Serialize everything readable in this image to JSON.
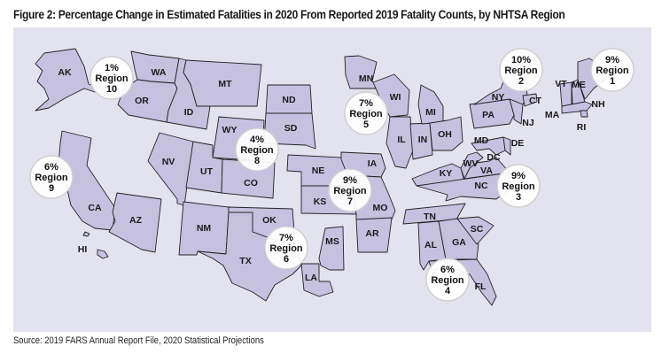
{
  "title": "Figure 2: Percentage Change in Estimated Fatalities in 2020 From Reported 2019 Fatality Counts, by NHTSA Region",
  "source": "Source: 2019 FARS Annual Report File, 2020 Statistical Projections",
  "colors": {
    "state_fill": "#c5c1df",
    "panel_bg": "#e3e2ef",
    "bubble_fill": "#ffffff"
  },
  "states": [
    "AK",
    "WA",
    "OR",
    "ID",
    "MT",
    "ND",
    "SD",
    "WY",
    "NV",
    "UT",
    "CO",
    "CA",
    "AZ",
    "HI",
    "NM",
    "NE",
    "KS",
    "OK",
    "TX",
    "IA",
    "MO",
    "AR",
    "LA",
    "MS",
    "MN",
    "WI",
    "IL",
    "IN",
    "MI",
    "OH",
    "KY",
    "TN",
    "AL",
    "GA",
    "SC",
    "FL",
    "NC",
    "VA",
    "WV",
    "MD",
    "DE",
    "DC",
    "PA",
    "NY",
    "NJ",
    "CT",
    "VT",
    "NH",
    "ME",
    "MA",
    "RI"
  ],
  "regions": [
    {
      "pct": "9%",
      "label": "Region",
      "num": "1"
    },
    {
      "pct": "10%",
      "label": "Region",
      "num": "2"
    },
    {
      "pct": "9%",
      "label": "Region",
      "num": "3"
    },
    {
      "pct": "6%",
      "label": "Region",
      "num": "4"
    },
    {
      "pct": "7%",
      "label": "Region",
      "num": "5"
    },
    {
      "pct": "7%",
      "label": "Region",
      "num": "6"
    },
    {
      "pct": "9%",
      "label": "Region",
      "num": "7"
    },
    {
      "pct": "4%",
      "label": "Region",
      "num": "8"
    },
    {
      "pct": "6%",
      "label": "Region",
      "num": "9"
    },
    {
      "pct": "1%",
      "label": "Region",
      "num": "10"
    }
  ]
}
